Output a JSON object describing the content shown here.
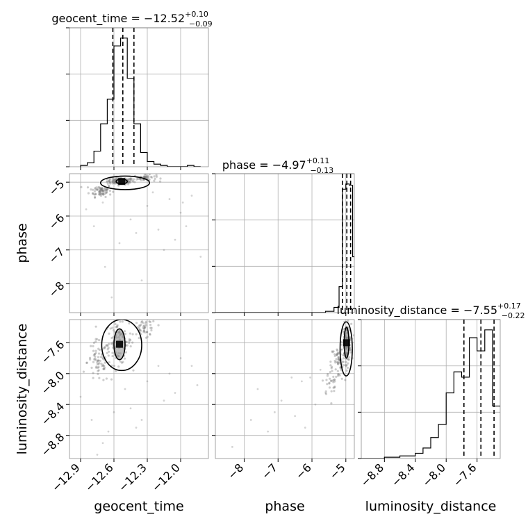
{
  "chart_data": {
    "type": "corner",
    "parameters": [
      "geocent_time",
      "phase",
      "luminosity_distance"
    ],
    "titles": [
      {
        "parameter": "geocent_time",
        "text": "geocent_time = ",
        "median": "−12.52",
        "plus": "+0.10",
        "minus": "−0.09"
      },
      {
        "parameter": "phase",
        "text": "phase = ",
        "median": "−4.97",
        "plus": "+0.11",
        "minus": "−0.13"
      },
      {
        "parameter": "luminosity_distance",
        "text": "luminosity_distance = ",
        "median": "−7.55",
        "plus": "+0.17",
        "minus": "−0.22"
      }
    ],
    "ranges": {
      "geocent_time": [
        -13.0,
        -11.75
      ],
      "phase": [
        -8.85,
        -4.75
      ],
      "luminosity_distance": [
        -9.1,
        -7.3
      ]
    },
    "ticks": {
      "geocent_time": [
        {
          "value": -12.9,
          "label": "−12.9"
        },
        {
          "value": -12.6,
          "label": "−12.6"
        },
        {
          "value": -12.3,
          "label": "−12.3"
        },
        {
          "value": -12.0,
          "label": "−12.0"
        }
      ],
      "phase": [
        {
          "value": -8,
          "label": "−8"
        },
        {
          "value": -7,
          "label": "−7"
        },
        {
          "value": -6,
          "label": "−6"
        },
        {
          "value": -5,
          "label": "−5"
        }
      ],
      "luminosity_distance": [
        {
          "value": -8.8,
          "label": "−8.8"
        },
        {
          "value": -8.4,
          "label": "−8.4"
        },
        {
          "value": -8.0,
          "label": "−8.0"
        },
        {
          "value": -7.6,
          "label": "−7.6"
        }
      ]
    },
    "quantiles": {
      "geocent_time": [
        -12.61,
        -12.52,
        -12.42
      ],
      "phase": [
        -5.1,
        -4.97,
        -4.86
      ],
      "luminosity_distance": [
        -7.77,
        -7.55,
        -7.38
      ]
    },
    "histograms": {
      "geocent_time": {
        "edges": [
          -12.9,
          -12.84,
          -12.78,
          -12.72,
          -12.66,
          -12.6,
          -12.54,
          -12.48,
          -12.42,
          -12.36,
          -12.3,
          -12.24,
          -12.18,
          -12.12,
          -12.06,
          -12.0,
          -11.94,
          -11.88,
          -11.82
        ],
        "counts": [
          1,
          3,
          12,
          33,
          52,
          93,
          99,
          68,
          33,
          11,
          4,
          2,
          1,
          0,
          0,
          0,
          1,
          0
        ]
      },
      "phase": {
        "edges": [
          -8.85,
          -8.6,
          -8.35,
          -8.1,
          -7.85,
          -7.6,
          -7.35,
          -7.1,
          -6.85,
          -6.6,
          -6.35,
          -6.1,
          -5.85,
          -5.6,
          -5.35,
          -5.2,
          -5.1,
          -5.0,
          -4.9,
          -4.8,
          -4.75
        ],
        "counts": [
          0,
          0,
          0,
          0,
          0,
          0,
          0,
          0,
          0,
          0,
          0,
          0,
          0,
          1,
          4,
          20,
          95,
          99,
          98,
          43
        ]
      },
      "luminosity_distance": {
        "edges": [
          -9.1,
          -9.0,
          -8.9,
          -8.8,
          -8.7,
          -8.6,
          -8.5,
          -8.4,
          -8.3,
          -8.2,
          -8.1,
          -8.0,
          -7.9,
          -7.8,
          -7.7,
          -7.6,
          -7.5,
          -7.4,
          -7.3
        ],
        "counts": [
          0,
          0,
          0,
          1,
          1,
          2,
          2,
          4,
          8,
          16,
          26,
          50,
          66,
          62,
          92,
          82,
          98,
          40
        ]
      }
    },
    "scatter": {
      "phase_vs_geocent_time": {
        "cores": [
          {
            "x": -12.54,
            "y": -4.97,
            "sx": 0.06,
            "sy": 0.05,
            "n": 120
          },
          {
            "x": -12.72,
            "y": -5.25,
            "sx": 0.05,
            "sy": 0.09,
            "n": 70
          },
          {
            "x": -12.32,
            "y": -4.88,
            "sx": 0.05,
            "sy": 0.05,
            "n": 50
          }
        ],
        "outliers": [
          {
            "x": -12.85,
            "y": -5.8
          },
          {
            "x": -12.78,
            "y": -6.3
          },
          {
            "x": -12.7,
            "y": -5.6
          },
          {
            "x": -12.55,
            "y": -6.8
          },
          {
            "x": -12.45,
            "y": -6.1
          },
          {
            "x": -12.3,
            "y": -5.7
          },
          {
            "x": -12.2,
            "y": -6.4
          },
          {
            "x": -12.1,
            "y": -5.5
          },
          {
            "x": -12.0,
            "y": -5.9
          },
          {
            "x": -11.95,
            "y": -6.3
          },
          {
            "x": -11.9,
            "y": -5.4
          },
          {
            "x": -11.82,
            "y": -7.2
          },
          {
            "x": -12.62,
            "y": -8.4
          },
          {
            "x": -12.35,
            "y": -7.9
          },
          {
            "x": -12.15,
            "y": -7.0
          },
          {
            "x": -12.4,
            "y": -6.5
          },
          {
            "x": -12.05,
            "y": -6.7
          },
          {
            "x": -12.25,
            "y": -5.3
          },
          {
            "x": -12.68,
            "y": -7.5
          },
          {
            "x": -11.98,
            "y": -5.6
          }
        ],
        "contours": [
          {
            "cx": -12.53,
            "cy": -4.98,
            "rx": 0.05,
            "ry": 0.07
          },
          {
            "cx": -12.5,
            "cy": -5.02,
            "rx": 0.22,
            "ry": 0.2
          }
        ]
      },
      "luminosity_distance_vs_geocent_time": {
        "cores": [
          {
            "x": -12.56,
            "y": -7.6,
            "sx": 0.06,
            "sy": 0.14,
            "n": 110
          },
          {
            "x": -12.74,
            "y": -7.85,
            "sx": 0.05,
            "sy": 0.14,
            "n": 70
          },
          {
            "x": -12.32,
            "y": -7.42,
            "sx": 0.05,
            "sy": 0.07,
            "n": 50
          }
        ],
        "outliers": [
          {
            "x": -12.9,
            "y": -8.3
          },
          {
            "x": -12.8,
            "y": -8.6
          },
          {
            "x": -12.7,
            "y": -8.9
          },
          {
            "x": -12.6,
            "y": -8.5
          },
          {
            "x": -12.5,
            "y": -8.2
          },
          {
            "x": -12.4,
            "y": -8.7
          },
          {
            "x": -12.3,
            "y": -8.1
          },
          {
            "x": -12.2,
            "y": -7.9
          },
          {
            "x": -12.1,
            "y": -8.0
          },
          {
            "x": -12.0,
            "y": -7.8
          },
          {
            "x": -11.9,
            "y": -7.9
          },
          {
            "x": -11.85,
            "y": -8.15
          },
          {
            "x": -12.45,
            "y": -8.45
          },
          {
            "x": -12.75,
            "y": -9.05
          },
          {
            "x": -12.15,
            "y": -8.35
          },
          {
            "x": -12.35,
            "y": -8.6
          },
          {
            "x": -12.05,
            "y": -8.25
          },
          {
            "x": -12.65,
            "y": -8.75
          }
        ],
        "contours": [
          {
            "cx": -12.55,
            "cy": -7.62,
            "rx": 0.05,
            "ry": 0.2
          },
          {
            "cx": -12.53,
            "cy": -7.63,
            "rx": 0.18,
            "ry": 0.33
          }
        ]
      },
      "luminosity_distance_vs_phase": {
        "cores": [
          {
            "x": -4.98,
            "y": -7.6,
            "sx": 0.07,
            "sy": 0.12,
            "n": 120
          },
          {
            "x": -5.2,
            "y": -7.85,
            "sx": 0.12,
            "sy": 0.12,
            "n": 60
          },
          {
            "x": -5.4,
            "y": -8.1,
            "sx": 0.15,
            "sy": 0.1,
            "n": 30
          }
        ],
        "outliers": [
          {
            "x": -8.35,
            "y": -8.95
          },
          {
            "x": -7.6,
            "y": -8.2
          },
          {
            "x": -7.1,
            "y": -8.5
          },
          {
            "x": -6.9,
            "y": -8.35
          },
          {
            "x": -6.5,
            "y": -8.55
          },
          {
            "x": -6.3,
            "y": -8.1
          },
          {
            "x": -6.05,
            "y": -8.05
          },
          {
            "x": -5.9,
            "y": -8.4
          },
          {
            "x": -5.75,
            "y": -7.95
          },
          {
            "x": -6.2,
            "y": -8.7
          },
          {
            "x": -7.8,
            "y": -8.6
          },
          {
            "x": -6.6,
            "y": -8.05
          },
          {
            "x": -5.6,
            "y": -8.25
          },
          {
            "x": -7.3,
            "y": -8.75
          }
        ],
        "contours": [
          {
            "cx": -4.98,
            "cy": -7.6,
            "rx": 0.07,
            "ry": 0.2
          },
          {
            "cx": -4.99,
            "cy": -7.68,
            "rx": 0.18,
            "ry": 0.35
          }
        ]
      }
    }
  }
}
